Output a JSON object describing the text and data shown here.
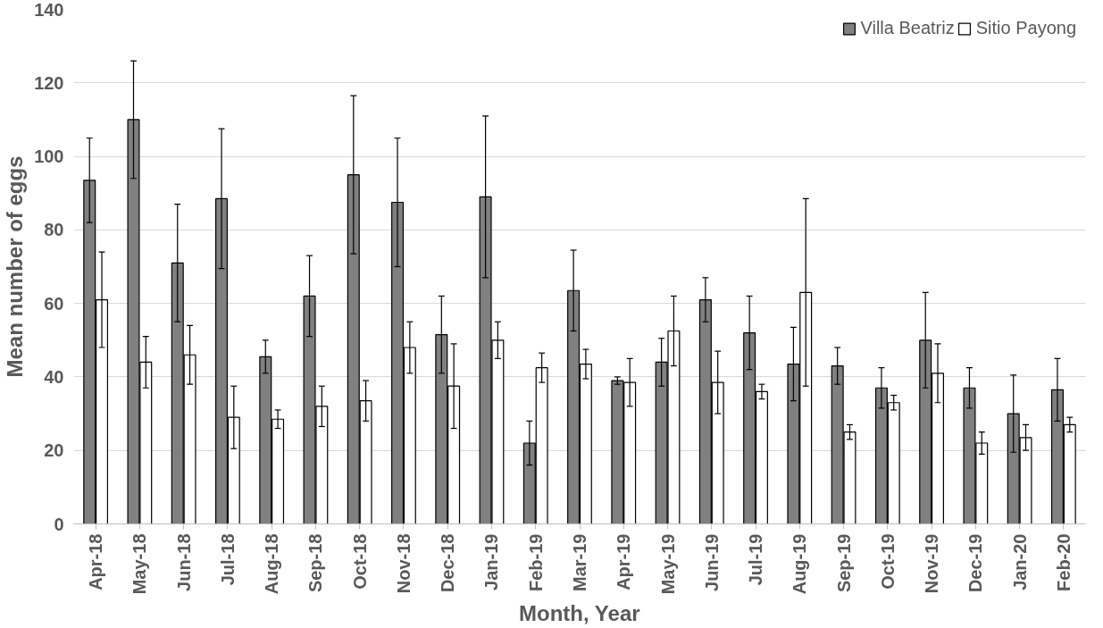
{
  "chart_data": {
    "type": "bar",
    "xlabel": "Month, Year",
    "ylabel": "Mean number of eggs",
    "categories": [
      "Apr-18",
      "May-18",
      "Jun-18",
      "Jul-18",
      "Aug-18",
      "Sep-18",
      "Oct-18",
      "Nov-18",
      "Dec-18",
      "Jan-19",
      "Feb-19",
      "Mar-19",
      "Apr-19",
      "May-19",
      "Jun-19",
      "Jul-19",
      "Aug-19",
      "Sep-19",
      "Oct-19",
      "Nov-19",
      "Dec-19",
      "Jan-20",
      "Feb-20"
    ],
    "series": [
      {
        "name": "Villa Beatriz",
        "color": "#808080",
        "values": [
          93.5,
          110,
          71,
          88.5,
          45.5,
          62,
          95,
          87.5,
          51.5,
          89,
          22,
          63.5,
          39,
          44,
          61,
          52,
          43.5,
          43,
          37,
          50,
          37,
          30,
          36.5
        ],
        "errors": [
          11.5,
          16,
          16,
          19,
          4.5,
          11,
          21.5,
          17.5,
          10.5,
          22,
          6,
          11,
          1,
          6.5,
          6,
          10,
          10,
          5,
          5.5,
          13,
          5.5,
          10.5,
          8.5
        ]
      },
      {
        "name": "Sitio Payong",
        "color": "#ffffff",
        "values": [
          61,
          44,
          46,
          29,
          28.5,
          32,
          33.5,
          48,
          37.5,
          50,
          42.5,
          43.5,
          38.5,
          52.5,
          38.5,
          36,
          63,
          25,
          33,
          41,
          22,
          23.5,
          27
        ],
        "errors": [
          13,
          7,
          8,
          8.5,
          2.5,
          5.5,
          5.5,
          7,
          11.5,
          5,
          4,
          4,
          6.5,
          9.5,
          8.5,
          2,
          25.5,
          2,
          2,
          8,
          3,
          3.5,
          2
        ]
      }
    ],
    "ylim": [
      0,
      140
    ],
    "yticks": [
      0,
      20,
      40,
      60,
      80,
      100,
      120,
      140
    ],
    "grid": "y",
    "legend": "top right"
  }
}
